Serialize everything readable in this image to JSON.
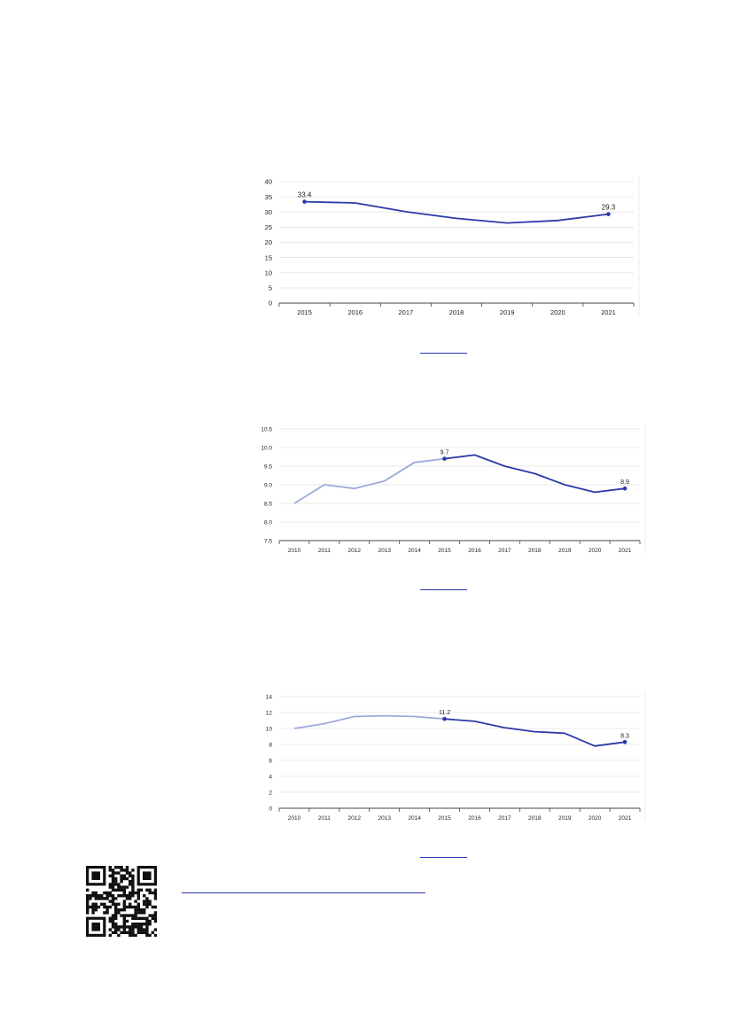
{
  "colors": {
    "line": "#2a3aa6",
    "line_light": "#9cabdc",
    "grid": "#e2e2e2",
    "axis": "#444444",
    "link": "#2a36b0",
    "qr": "#111111"
  },
  "chart_data": [
    {
      "type": "line",
      "x": [
        "2015",
        "2016",
        "2017",
        "2018",
        "2019",
        "2020",
        "2021"
      ],
      "series": [
        {
          "values": [
            33.4,
            33.0,
            30.1,
            27.9,
            26.4,
            27.2,
            29.3
          ],
          "emphasis": "dark"
        }
      ],
      "data_labels": [
        {
          "x": "2015",
          "text": "33.4"
        },
        {
          "x": "2021",
          "text": "29.3"
        }
      ],
      "ylim": [
        0,
        40
      ],
      "yticks": [
        "0",
        "5",
        "10",
        "15",
        "20",
        "25",
        "30",
        "35",
        "40"
      ],
      "grid": true
    },
    {
      "type": "line",
      "x": [
        "2010",
        "2011",
        "2012",
        "2013",
        "2014",
        "2015",
        "2016",
        "2017",
        "2018",
        "2019",
        "2020",
        "2021"
      ],
      "series": [
        {
          "values": [
            8.5,
            9.0,
            8.9,
            9.1,
            9.6,
            9.7,
            null,
            null,
            null,
            null,
            null,
            null
          ],
          "emphasis": "light"
        },
        {
          "values": [
            null,
            null,
            null,
            null,
            null,
            9.7,
            9.8,
            9.5,
            9.3,
            9.0,
            8.8,
            8.9
          ],
          "emphasis": "dark"
        }
      ],
      "data_labels": [
        {
          "x": "2015",
          "text": "9.7"
        },
        {
          "x": "2021",
          "text": "8.9"
        }
      ],
      "ylim": [
        7.5,
        10.5
      ],
      "yticks": [
        "7.5",
        "8.0",
        "8.5",
        "9.0",
        "9.5",
        "10.0",
        "10.5"
      ],
      "grid": true
    },
    {
      "type": "line",
      "x": [
        "2010",
        "2011",
        "2012",
        "2013",
        "2014",
        "2015",
        "2016",
        "2017",
        "2018",
        "2019",
        "2020",
        "2021"
      ],
      "series": [
        {
          "values": [
            10.0,
            10.6,
            11.5,
            11.6,
            11.5,
            11.2,
            null,
            null,
            null,
            null,
            null,
            null
          ],
          "emphasis": "light"
        },
        {
          "values": [
            null,
            null,
            null,
            null,
            null,
            11.2,
            10.9,
            10.1,
            9.6,
            9.4,
            7.8,
            8.3
          ],
          "emphasis": "dark"
        }
      ],
      "data_labels": [
        {
          "x": "2015",
          "text": "11.2"
        },
        {
          "x": "2021",
          "text": "8.3"
        }
      ],
      "ylim": [
        0,
        14
      ],
      "yticks": [
        "0",
        "2",
        "4",
        "6",
        "8",
        "10",
        "12",
        "14"
      ],
      "grid": true
    }
  ]
}
